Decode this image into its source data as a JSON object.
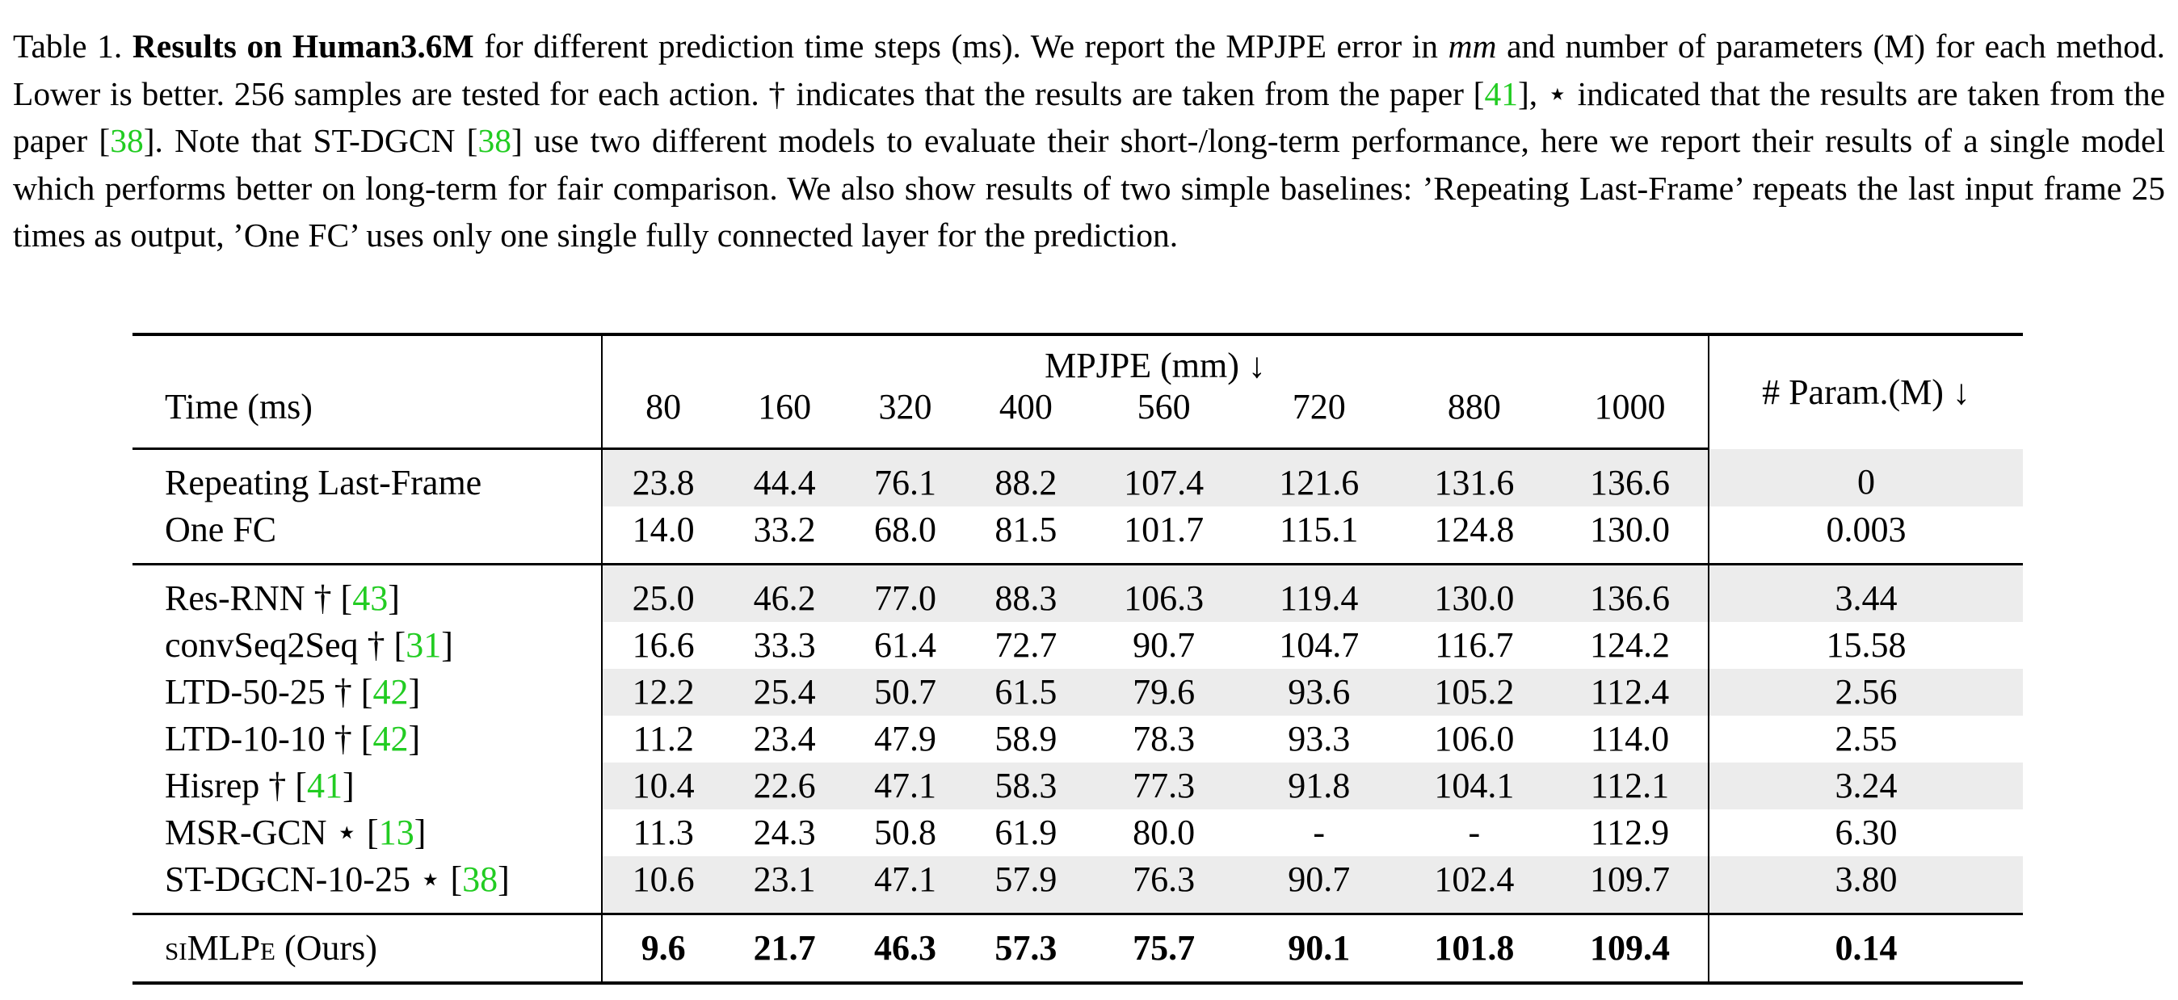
{
  "caption": {
    "label": "Table 1.",
    "bold_title": "Results on Human3.6M",
    "part1": " for different prediction time steps (ms). We report the MPJPE error in ",
    "mm": "mm",
    "part2": " and number of parameters (M) for each method. Lower is better. 256 samples are tested for each action. † indicates that the results are taken from the paper [",
    "cite1": "41",
    "part3": "], ⋆ indicated that the results are taken from the paper [",
    "cite2": "38",
    "part4": "]. Note that ST-DGCN [",
    "cite3": "38",
    "part5": "] use two different models to evaluate their short-/long-term performance, here we report their results of a single model which performs better on long-term for fair comparison. We also show results of two simple baselines: ’Repeating Last-Frame’ repeats the last input frame 25 times as output, ’One FC’ uses only one single fully connected layer for the prediction."
  },
  "table": {
    "group_header": "MPJPE (mm) ↓",
    "time_label": "Time (ms)",
    "param_header": "# Param.(M) ↓",
    "time_steps": [
      "80",
      "160",
      "320",
      "400",
      "560",
      "720",
      "880",
      "1000"
    ],
    "baselines": [
      {
        "name": "Repeating Last-Frame",
        "values": [
          "23.8",
          "44.4",
          "76.1",
          "88.2",
          "107.4",
          "121.6",
          "131.6",
          "136.6"
        ],
        "param": "0"
      },
      {
        "name": "One FC",
        "values": [
          "14.0",
          "33.2",
          "68.0",
          "81.5",
          "101.7",
          "115.1",
          "124.8",
          "130.0"
        ],
        "param": "0.003"
      }
    ],
    "methods": [
      {
        "name": "Res-RNN † [",
        "cite": "43",
        "name_end": "]",
        "values": [
          "25.0",
          "46.2",
          "77.0",
          "88.3",
          "106.3",
          "119.4",
          "130.0",
          "136.6"
        ],
        "param": "3.44"
      },
      {
        "name": "convSeq2Seq † [",
        "cite": "31",
        "name_end": "]",
        "values": [
          "16.6",
          "33.3",
          "61.4",
          "72.7",
          "90.7",
          "104.7",
          "116.7",
          "124.2"
        ],
        "param": "15.58"
      },
      {
        "name": "LTD-50-25 † [",
        "cite": "42",
        "name_end": "]",
        "values": [
          "12.2",
          "25.4",
          "50.7",
          "61.5",
          "79.6",
          "93.6",
          "105.2",
          "112.4"
        ],
        "param": "2.56"
      },
      {
        "name": "LTD-10-10 † [",
        "cite": "42",
        "name_end": "]",
        "values": [
          "11.2",
          "23.4",
          "47.9",
          "58.9",
          "78.3",
          "93.3",
          "106.0",
          "114.0"
        ],
        "param": "2.55"
      },
      {
        "name": "Hisrep † [",
        "cite": "41",
        "name_end": "]",
        "values": [
          "10.4",
          "22.6",
          "47.1",
          "58.3",
          "77.3",
          "91.8",
          "104.1",
          "112.1"
        ],
        "param": "3.24"
      },
      {
        "name": "MSR-GCN ⋆ [",
        "cite": "13",
        "name_end": "]",
        "values": [
          "11.3",
          "24.3",
          "50.8",
          "61.9",
          "80.0",
          "-",
          "-",
          "112.9"
        ],
        "param": "6.30"
      },
      {
        "name": "ST-DGCN-10-25 ⋆ [",
        "cite": "38",
        "name_end": "]",
        "values": [
          "10.6",
          "23.1",
          "47.1",
          "57.9",
          "76.3",
          "90.7",
          "102.4",
          "109.7"
        ],
        "param": "3.80"
      }
    ],
    "ours": {
      "name": "siMLPe",
      "suffix": " (Ours)",
      "values": [
        "9.6",
        "21.7",
        "46.3",
        "57.3",
        "75.7",
        "90.1",
        "101.8",
        "109.4"
      ],
      "param": "0.14"
    }
  },
  "colors": {
    "citation": "#22cc22",
    "row_shade": "#ececec"
  }
}
